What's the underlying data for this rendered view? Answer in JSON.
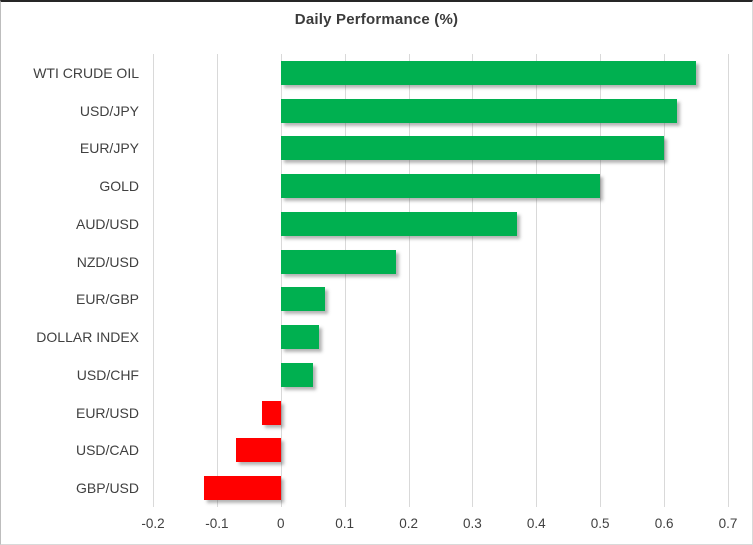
{
  "chart_data": {
    "type": "bar",
    "orientation": "horizontal",
    "title": "Daily Performance (%)",
    "categories": [
      "WTI CRUDE OIL",
      "USD/JPY",
      "EUR/JPY",
      "GOLD",
      "AUD/USD",
      "NZD/USD",
      "EUR/GBP",
      "DOLLAR INDEX",
      "USD/CHF",
      "EUR/USD",
      "USD/CAD",
      "GBP/USD"
    ],
    "values": [
      0.65,
      0.62,
      0.6,
      0.5,
      0.37,
      0.18,
      0.07,
      0.06,
      0.05,
      -0.03,
      -0.07,
      -0.12
    ],
    "xlim": [
      -0.2,
      0.7
    ],
    "x_tick_values": [
      -0.2,
      -0.1,
      0,
      0.1,
      0.2,
      0.3,
      0.4,
      0.5,
      0.6,
      0.7
    ],
    "x_tick_labels": [
      "-0.2",
      "-0.1",
      "0",
      "0.1",
      "0.2",
      "0.3",
      "0.4",
      "0.5",
      "0.6",
      "0.7"
    ],
    "grid": true,
    "legend": "none",
    "colors": {
      "positive": "#00B050",
      "negative": "#FF0000",
      "gridline": "#D9D9D9",
      "axis_text": "#404040",
      "title_text": "#3B3B3B"
    }
  }
}
